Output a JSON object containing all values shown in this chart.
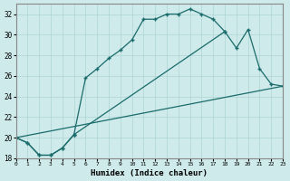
{
  "xlabel": "Humidex (Indice chaleur)",
  "xlim": [
    0,
    23
  ],
  "ylim": [
    18,
    33
  ],
  "yticks": [
    18,
    20,
    22,
    24,
    26,
    28,
    30,
    32
  ],
  "xticks": [
    0,
    1,
    2,
    3,
    4,
    5,
    6,
    7,
    8,
    9,
    10,
    11,
    12,
    13,
    14,
    15,
    16,
    17,
    18,
    19,
    20,
    21,
    22,
    23
  ],
  "bg_color": "#ceeaea",
  "line_color": "#1a6b6b",
  "grid_color": "#aed4d4",
  "curve1_x": [
    0,
    1,
    2,
    3,
    4,
    5,
    6,
    7,
    8,
    9,
    10,
    11,
    12,
    13,
    14,
    15,
    16,
    17,
    18
  ],
  "curve1_y": [
    20.0,
    19.5,
    18.3,
    18.3,
    19.0,
    20.3,
    25.8,
    26.7,
    27.7,
    28.5,
    29.5,
    31.5,
    31.5,
    32.0,
    32.0,
    32.5,
    32.0,
    31.5,
    30.3
  ],
  "curve2_x": [
    0,
    1,
    2,
    3,
    4,
    5,
    18,
    19,
    20,
    21,
    22,
    23
  ],
  "curve2_y": [
    20.0,
    19.5,
    18.3,
    18.3,
    19.0,
    20.3,
    30.3,
    28.7,
    30.5,
    26.7,
    25.2,
    25.0
  ],
  "curve3_x": [
    0,
    23
  ],
  "curve3_y": [
    20.0,
    25.0
  ]
}
